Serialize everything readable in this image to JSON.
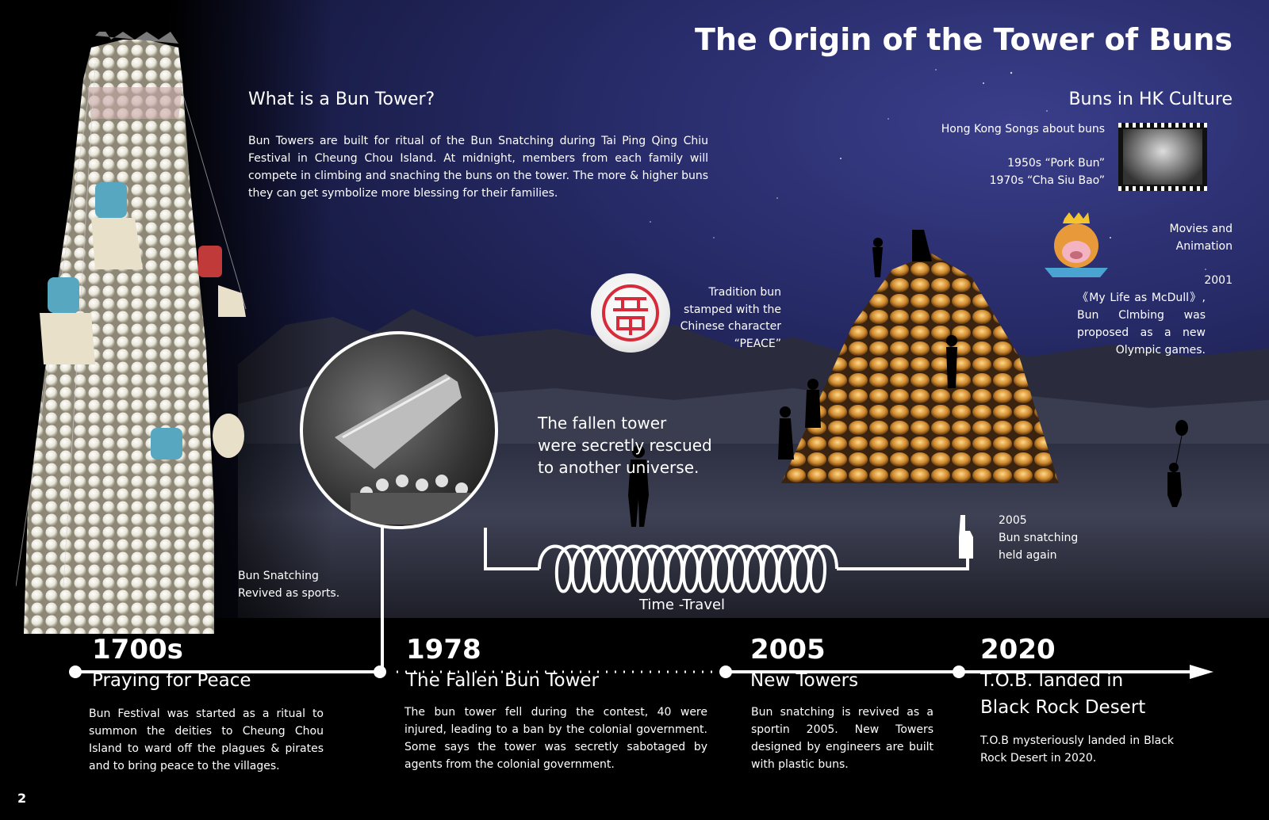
{
  "title": "The Origin of the Tower of Buns",
  "what_is": {
    "heading": "What is a Bun Tower?",
    "body": "Bun Towers are built for ritual of the Bun Snatching during Tai Ping Qing Chiu Festival in Cheung Chou Island. At midnight,  members from each family will compete in climbing and snaching the buns on the tower. The more & higher buns they can get symbolize more blessing for their families."
  },
  "hk_culture": {
    "heading": "Buns in HK Culture",
    "songs_label": "Hong Kong Songs about buns",
    "song_1": "1950s “Pork Bun”",
    "song_2": "1970s “Cha Siu Bao”",
    "movies_label_1": "Movies and",
    "movies_label_2": "Animation",
    "movie_year": "2001",
    "movie_text": "《My Life as McDull》, Bun Clmbing was proposed as a new Olympic games."
  },
  "tradition": {
    "line1": "Tradition bun",
    "line2": "stamped with the",
    "line3": "Chinese character",
    "line4": "“PEACE”"
  },
  "fallen_caption": {
    "line1": "The fallen tower",
    "line2": "were secretly rescued",
    "line3": "to another universe."
  },
  "revived_caption": {
    "line1": "Bun Snatching",
    "line2": "Revived as sports."
  },
  "snatch_2005": {
    "line1": "2005",
    "line2": "Bun snatching",
    "line3": "held again"
  },
  "time_travel": "Time -Travel",
  "timeline": [
    {
      "year": "1700s",
      "title": "Praying for Peace",
      "desc": "Bun Festival was started as a ritual to summon the deities to Cheung Chou Island to ward off the plagues & pirates and to bring peace to the villages."
    },
    {
      "year": "1978",
      "title": "The Fallen Bun Tower",
      "desc": "The bun tower fell during the contest, 40 were injured, leading to a ban by the colonial government. Some says the tower was secretly sabotaged by agents from the colonial government."
    },
    {
      "year": "2005",
      "title": "New Towers",
      "desc": "Bun snatching is revived as a sportin 2005. New Towers designed by engineers are built with plastic buns."
    },
    {
      "year": "2020",
      "title_1": "T.O.B. landed in",
      "title_2": "Black Rock Desert",
      "desc": "T.O.B mysteriously landed in Black Rock Desert in 2020."
    }
  ],
  "page_number": "2",
  "colors": {
    "sky": "#262a66",
    "stamp_red": "#d62b3a",
    "bun_gold": "#e6a23c"
  }
}
